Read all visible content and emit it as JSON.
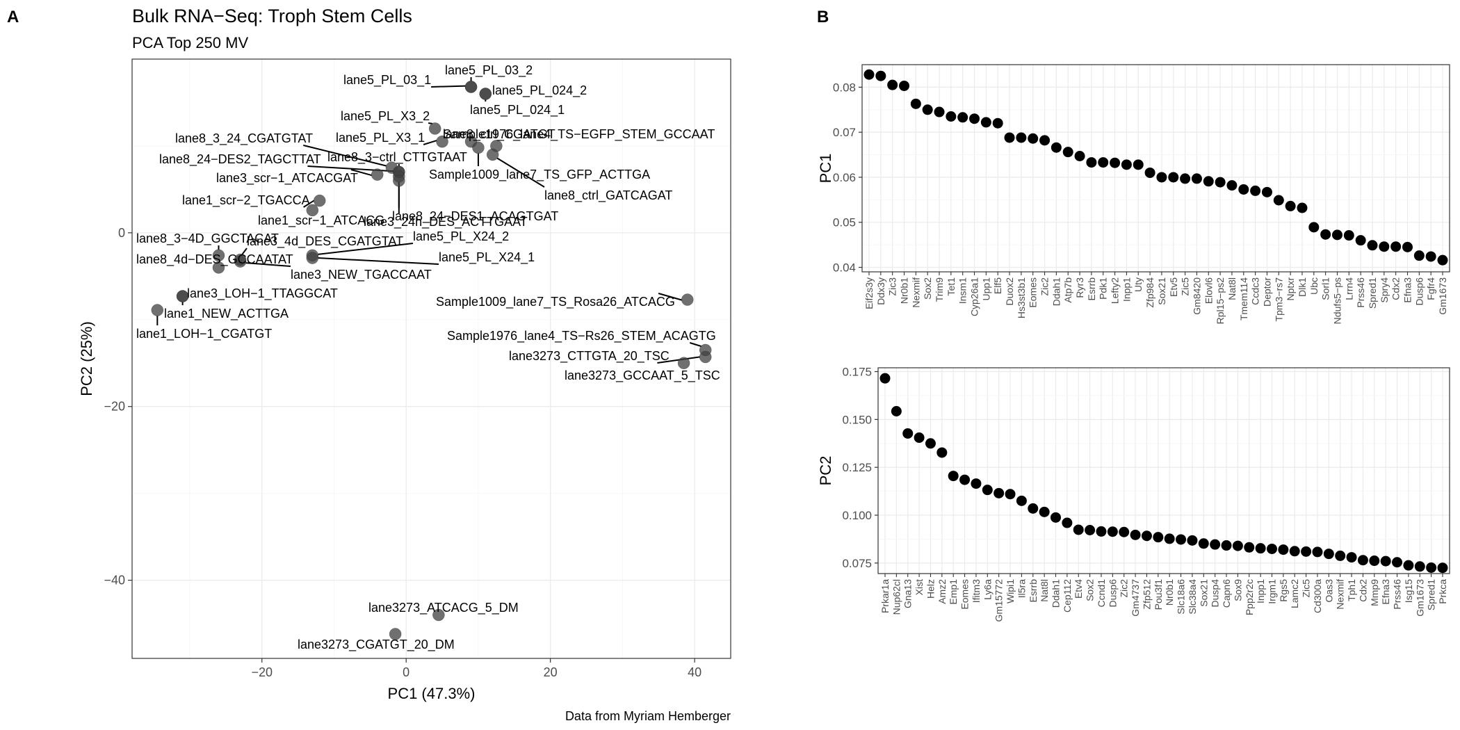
{
  "panel_a": {
    "letter": "A",
    "title": "Bulk RNA−Seq: Troph Stem Cells",
    "subtitle": "PCA Top 250 MV",
    "caption": "Data from Myriam Hemberger"
  },
  "panel_b": {
    "letter": "B"
  },
  "chart_data": [
    {
      "type": "scatter",
      "title": "Bulk RNA−Seq: Troph Stem Cells",
      "subtitle": "PCA Top 250 MV",
      "xlabel": "PC1 (47.3%)",
      "ylabel": "PC2 (25%)",
      "xlim": [
        -38,
        45
      ],
      "ylim": [
        -49,
        20
      ],
      "xticks": [
        -20,
        0,
        20,
        40
      ],
      "yticks": [
        -40,
        -20,
        0
      ],
      "grid": true,
      "points": [
        {
          "label": "lane5_PL_03_2",
          "x": 9.0,
          "y": 16.8
        },
        {
          "label": "lane5_PL_03_1",
          "x": 9.0,
          "y": 16.8
        },
        {
          "label": "lane5_PL_024_2",
          "x": 11.0,
          "y": 16.0
        },
        {
          "label": "lane5_PL_024_1",
          "x": 11.0,
          "y": 16.0
        },
        {
          "label": "lane5_PL_X3_2",
          "x": 4.0,
          "y": 12.0
        },
        {
          "label": "lane5_PL_X3_1",
          "x": 5.0,
          "y": 10.5
        },
        {
          "label": "Sample1976_lane4_TS−EGFP_STEM_GCCAAT",
          "x": 9.0,
          "y": 10.5
        },
        {
          "label": "lane8_ctrl_CGATGT",
          "x": 12.5,
          "y": 10.0
        },
        {
          "label": "Sample1009_lane7_TS_GFP_ACTTGA",
          "x": 10.0,
          "y": 9.8
        },
        {
          "label": "lane8_ctrl_GATCAGAT",
          "x": 12.0,
          "y": 9.0
        },
        {
          "label": "lane8_3_24_CGATGTAT",
          "x": -2.0,
          "y": 7.5
        },
        {
          "label": "lane8_3−ctrl_CTTGTAAT",
          "x": -1.0,
          "y": 7.0
        },
        {
          "label": "lane8_24−DES2_TAGCTTAT",
          "x": -1.0,
          "y": 7.0
        },
        {
          "label": "lane3_scr−1_ATCACGAT",
          "x": -4.0,
          "y": 6.7
        },
        {
          "label": "lane3_24h_DES_ACTTGAAT",
          "x": -1.0,
          "y": 6.5
        },
        {
          "label": "lane8_24−DES1_ACAGTGAT",
          "x": -1.0,
          "y": 6.0
        },
        {
          "label": "lane1_scr−2_TGACCA",
          "x": -12.0,
          "y": 3.7
        },
        {
          "label": "lane1_scr−1_ATCACG",
          "x": -13.0,
          "y": 2.6
        },
        {
          "label": "lane5_PL_X24_2",
          "x": -13.0,
          "y": -2.6
        },
        {
          "label": "lane5_PL_X24_1",
          "x": -13.0,
          "y": -2.9
        },
        {
          "label": "lane3_4d_DES_CGATGTAT",
          "x": -23.0,
          "y": -3.1
        },
        {
          "label": "lane8_3−4D_GGCTACAT",
          "x": -26.0,
          "y": -2.6
        },
        {
          "label": "lane8_4d−DES_GCCAATAT",
          "x": -26.0,
          "y": -4.0
        },
        {
          "label": "lane3_NEW_TGACCAAT",
          "x": -23.0,
          "y": -3.3
        },
        {
          "label": "lane3_LOH−1_TTAGGCAT",
          "x": -31.0,
          "y": -7.3
        },
        {
          "label": "lane1_NEW_ACTTGA",
          "x": -31.0,
          "y": -7.3
        },
        {
          "label": "lane1_LOH−1_CGATGT",
          "x": -34.5,
          "y": -8.9
        },
        {
          "label": "Sample1009_lane7_TS_Rosa26_ATCACG",
          "x": 39.0,
          "y": -7.7
        },
        {
          "label": "Sample1976_lane4_TS−Rs26_STEM_ACAGTG",
          "x": 41.5,
          "y": -13.5
        },
        {
          "label": "lane3273_CTTGTA_20_TSC",
          "x": 41.5,
          "y": -14.3
        },
        {
          "label": "lane3273_GCCAAT_5_TSC",
          "x": 38.5,
          "y": -15.0
        },
        {
          "label": "lane3273_ATCACG_5_DM",
          "x": 4.5,
          "y": -44.0
        },
        {
          "label": "lane3273_CGATGT_20_DM",
          "x": -1.5,
          "y": -46.2
        }
      ]
    },
    {
      "type": "scatter",
      "ylabel": "PC1",
      "ylim": [
        0.039,
        0.085
      ],
      "yticks": [
        0.04,
        0.05,
        0.06,
        0.07,
        0.08
      ],
      "ytick_labels": [
        "0.04",
        "0.05",
        "0.06",
        "0.07",
        "0.08"
      ],
      "grid": true,
      "categories": [
        "Eif2s3y",
        "Ddx3y",
        "Zic3",
        "Nr0b1",
        "Nexmif",
        "Sox2",
        "Trim9",
        "Tet1",
        "Insm1",
        "Cyp26a1",
        "Upp1",
        "Elf5",
        "Duox2",
        "Hs3st3b1",
        "Eomes",
        "Zic2",
        "Ddah1",
        "Atp7b",
        "Ryr3",
        "Esrrb",
        "Pdk1",
        "Lefty2",
        "Inpp1",
        "Uty",
        "Zfp984",
        "Sox21",
        "Etv5",
        "Zic5",
        "Gm8420",
        "Elovl6",
        "Rpl15−ps2",
        "Nat8l",
        "Tmem114",
        "Ccdc3",
        "Deptor",
        "Tpm3−rs7",
        "Nptxr",
        "Dlk1",
        "Ubc",
        "Sorl1",
        "Ndufs5−ps",
        "Lrrn4",
        "Prss46",
        "Spred1",
        "Spry4",
        "Cdx2",
        "Efna3",
        "Dusp6",
        "Fgfr4",
        "Gm1673"
      ],
      "values": [
        0.0828,
        0.0825,
        0.0805,
        0.0803,
        0.0763,
        0.075,
        0.0745,
        0.0735,
        0.0733,
        0.073,
        0.0722,
        0.072,
        0.0688,
        0.0688,
        0.0686,
        0.0682,
        0.0666,
        0.0656,
        0.0647,
        0.0633,
        0.0633,
        0.0632,
        0.0628,
        0.0628,
        0.061,
        0.06,
        0.06,
        0.0597,
        0.0597,
        0.0591,
        0.0589,
        0.0582,
        0.0573,
        0.057,
        0.0567,
        0.0549,
        0.0536,
        0.0532,
        0.0489,
        0.0473,
        0.0472,
        0.0471,
        0.046,
        0.0449,
        0.0446,
        0.0446,
        0.0445,
        0.0426,
        0.0424,
        0.0416
      ]
    },
    {
      "type": "scatter",
      "ylabel": "PC2",
      "ylim": [
        0.0695,
        0.177
      ],
      "yticks": [
        0.075,
        0.1,
        0.125,
        0.15,
        0.175
      ],
      "ytick_labels": [
        "0.075",
        "0.100",
        "0.125",
        "0.150",
        "0.175"
      ],
      "grid": true,
      "categories": [
        "Prkar1a",
        "Nup62cl",
        "Gna13",
        "Xist",
        "Helz",
        "Amz2",
        "Emp1",
        "Eomes",
        "Ifitm3",
        "Ly6a",
        "Gm15772",
        "Wipi1",
        "Il5ra",
        "Esrrb",
        "Nat8l",
        "Ddah1",
        "Cep112",
        "Etv4",
        "Sox2",
        "Ccnd1",
        "Dusp6",
        "Zic2",
        "Gm4737",
        "Zfp512",
        "Pou3f1",
        "Nr0b1",
        "Slc18a6",
        "Slc38a4",
        "Sox21",
        "Dusp4",
        "Capn6",
        "Sox9",
        "Ppp2r2c",
        "Inpp1",
        "Irgm1",
        "Rgs5",
        "Lamc2",
        "Zic5",
        "Cd300a",
        "Oas3",
        "Nexmif",
        "Tph1",
        "Cdx2",
        "Mmp9",
        "Efna3",
        "Prss46",
        "Isg15",
        "Gm1673",
        "Spred1",
        "Prkca"
      ],
      "values": [
        0.1715,
        0.1543,
        0.1427,
        0.1405,
        0.1375,
        0.1327,
        0.1205,
        0.1185,
        0.1165,
        0.1132,
        0.1115,
        0.111,
        0.1075,
        0.1035,
        0.1017,
        0.0988,
        0.096,
        0.0924,
        0.0922,
        0.0915,
        0.0914,
        0.0912,
        0.0897,
        0.0892,
        0.0885,
        0.0877,
        0.0873,
        0.0868,
        0.0852,
        0.0847,
        0.0842,
        0.084,
        0.0832,
        0.0827,
        0.0824,
        0.082,
        0.0812,
        0.081,
        0.0808,
        0.0798,
        0.0788,
        0.078,
        0.0765,
        0.0762,
        0.076,
        0.0754,
        0.0738,
        0.0732,
        0.0726,
        0.0725
      ]
    }
  ]
}
